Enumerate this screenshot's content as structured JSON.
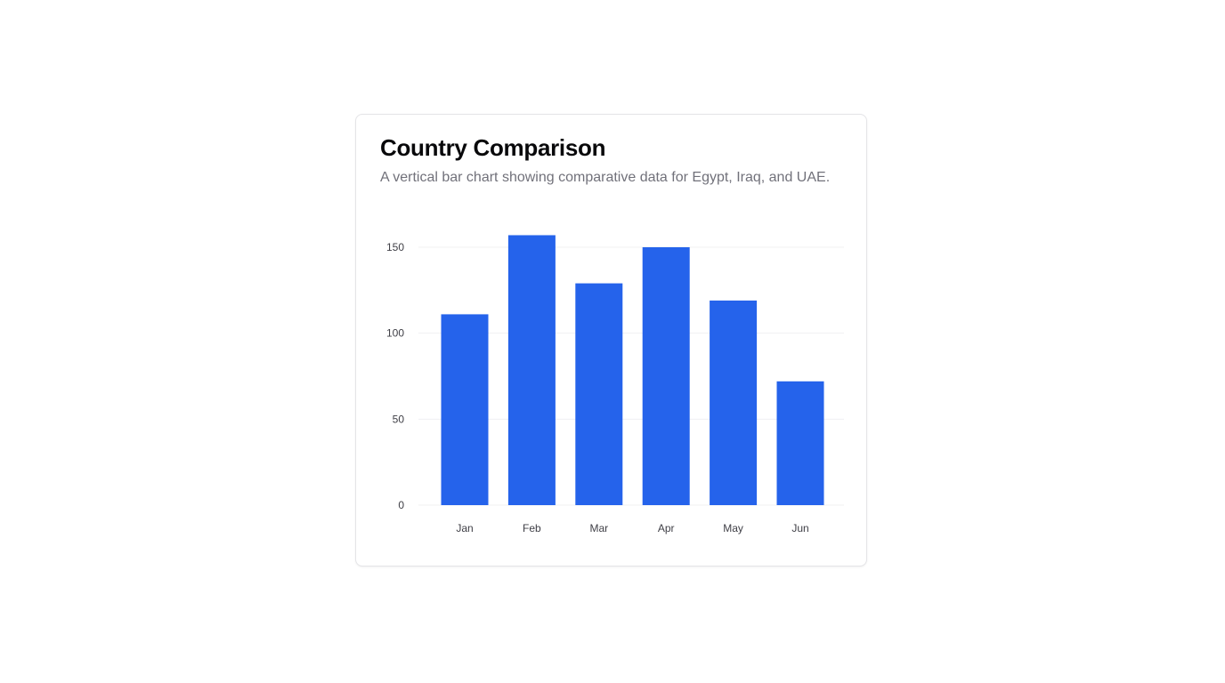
{
  "card": {
    "title": "Country Comparison",
    "subtitle": "A vertical bar chart showing comparative data for Egypt, Iraq, and UAE."
  },
  "chart_data": {
    "type": "bar",
    "categories": [
      "Jan",
      "Feb",
      "Mar",
      "Apr",
      "May",
      "Jun"
    ],
    "values": [
      111,
      157,
      129,
      150,
      119,
      72
    ],
    "yticks": [
      0,
      50,
      100,
      150
    ],
    "ylim": [
      0,
      160
    ],
    "grid": true,
    "bar_color": "#2563eb",
    "legend": "none"
  }
}
